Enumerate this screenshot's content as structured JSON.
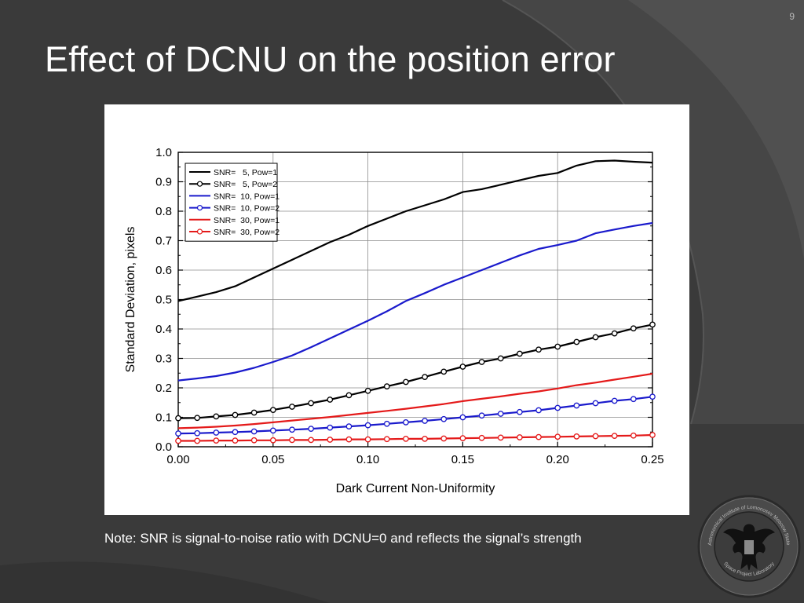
{
  "slide": {
    "page_number": "9",
    "title": "Effect of DCNU on the position error",
    "note": "Note: SNR is signal-to-noise ratio with DCNU=0 and reflects the signal’s strength",
    "seal_text_top": "Sternberg Astronomical Institute of Lomonosov Moscow State University",
    "seal_text_bottom": "Space Project Laboratory"
  },
  "colors": {
    "background": "#3a3a3a",
    "title": "#ffffff",
    "black_series": "#000000",
    "blue_series": "#1a1acc",
    "red_series": "#e41a1a"
  },
  "chart_data": {
    "type": "line",
    "title": "",
    "xlabel": "Dark Current Non-Uniformity",
    "ylabel": "Standard Deviation, pixels",
    "xlim": [
      0.0,
      0.25
    ],
    "ylim": [
      0.0,
      1.0
    ],
    "xticks": [
      "0.00",
      "0.05",
      "0.10",
      "0.15",
      "0.20",
      "0.25"
    ],
    "yticks": [
      "0.0",
      "0.1",
      "0.2",
      "0.3",
      "0.4",
      "0.5",
      "0.6",
      "0.7",
      "0.8",
      "0.9",
      "1.0"
    ],
    "grid": true,
    "legend_position": "top-left",
    "x": [
      0.0,
      0.01,
      0.02,
      0.03,
      0.04,
      0.05,
      0.06,
      0.07,
      0.08,
      0.09,
      0.1,
      0.11,
      0.12,
      0.13,
      0.14,
      0.15,
      0.16,
      0.17,
      0.18,
      0.19,
      0.2,
      0.21,
      0.22,
      0.23,
      0.24,
      0.25
    ],
    "series": [
      {
        "name": "SNR=   5, Pow=1",
        "color": "#000000",
        "marker": "none",
        "values": [
          0.495,
          0.51,
          0.525,
          0.545,
          0.575,
          0.605,
          0.635,
          0.665,
          0.695,
          0.72,
          0.75,
          0.775,
          0.8,
          0.82,
          0.84,
          0.865,
          0.875,
          0.89,
          0.905,
          0.92,
          0.93,
          0.955,
          0.97,
          0.972,
          0.968,
          0.965
        ]
      },
      {
        "name": "SNR=   5, Pow=2",
        "color": "#000000",
        "marker": "circle",
        "values": [
          0.097,
          0.098,
          0.103,
          0.108,
          0.116,
          0.125,
          0.136,
          0.148,
          0.16,
          0.175,
          0.19,
          0.205,
          0.22,
          0.237,
          0.255,
          0.272,
          0.288,
          0.3,
          0.316,
          0.33,
          0.34,
          0.356,
          0.372,
          0.385,
          0.402,
          0.415
        ]
      },
      {
        "name": "SNR=  10, Pow=1",
        "color": "#1a1acc",
        "marker": "none",
        "values": [
          0.225,
          0.232,
          0.24,
          0.252,
          0.268,
          0.288,
          0.31,
          0.338,
          0.368,
          0.398,
          0.428,
          0.46,
          0.495,
          0.522,
          0.55,
          0.575,
          0.6,
          0.625,
          0.65,
          0.672,
          0.685,
          0.7,
          0.725,
          0.738,
          0.75,
          0.76
        ]
      },
      {
        "name": "SNR=  10, Pow=2",
        "color": "#1a1acc",
        "marker": "circle",
        "values": [
          0.045,
          0.046,
          0.048,
          0.05,
          0.052,
          0.055,
          0.058,
          0.061,
          0.065,
          0.069,
          0.073,
          0.078,
          0.083,
          0.088,
          0.094,
          0.1,
          0.106,
          0.112,
          0.118,
          0.124,
          0.132,
          0.14,
          0.148,
          0.156,
          0.162,
          0.17
        ]
      },
      {
        "name": "SNR=  30, Pow=1",
        "color": "#e41a1a",
        "marker": "none",
        "values": [
          0.063,
          0.065,
          0.068,
          0.072,
          0.077,
          0.083,
          0.089,
          0.095,
          0.101,
          0.108,
          0.115,
          0.122,
          0.129,
          0.137,
          0.145,
          0.155,
          0.163,
          0.171,
          0.18,
          0.188,
          0.198,
          0.209,
          0.218,
          0.228,
          0.238,
          0.248
        ]
      },
      {
        "name": "SNR=  30, Pow=2",
        "color": "#e41a1a",
        "marker": "circle",
        "values": [
          0.02,
          0.02,
          0.021,
          0.021,
          0.022,
          0.022,
          0.023,
          0.023,
          0.024,
          0.025,
          0.025,
          0.026,
          0.027,
          0.027,
          0.028,
          0.029,
          0.03,
          0.031,
          0.032,
          0.033,
          0.034,
          0.035,
          0.036,
          0.037,
          0.038,
          0.04
        ]
      }
    ]
  }
}
